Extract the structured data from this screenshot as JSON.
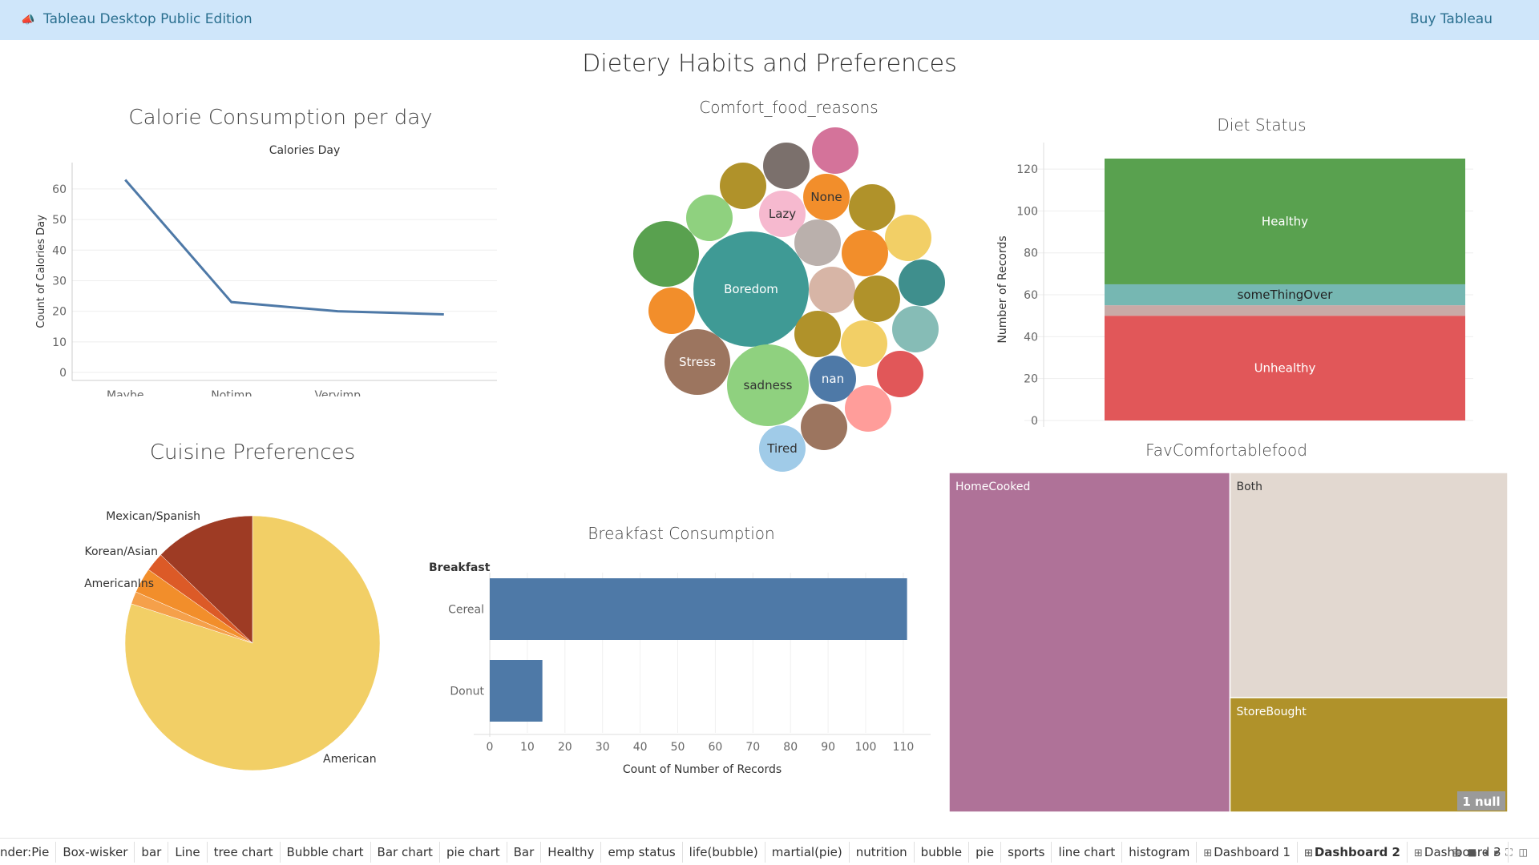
{
  "topbar": {
    "logo_icon": "megaphone-icon",
    "app_title": "Tableau Desktop Public Edition",
    "buy_link": "Buy Tableau"
  },
  "dashboard": {
    "title": "Dietery Habits and Preferences"
  },
  "line_chart": {
    "title": "Calorie Consumption per day",
    "header": "Calories Day",
    "chart_data": {
      "type": "line",
      "categories": [
        "Maybe",
        "Notimp",
        "Veryimp",
        "."
      ],
      "values": [
        63,
        23,
        20,
        19
      ],
      "ylabel": "Count of Calories Day",
      "yticks": [
        0,
        10,
        20,
        30,
        40,
        50,
        60
      ],
      "ylim": [
        0,
        66
      ],
      "color": "#4e79a7"
    }
  },
  "bubble_chart": {
    "title": "Comfort_food_reasons",
    "labels": {
      "boredom": "Boredom",
      "stress": "Stress",
      "sadness": "sadness",
      "lazy": "Lazy",
      "none": "None",
      "nan": "nan",
      "tired": "Tired"
    }
  },
  "stacked_bar": {
    "title": "Diet Status",
    "chart_data": {
      "type": "bar",
      "ylabel": "Number of Records",
      "yticks": [
        0,
        20,
        40,
        60,
        80,
        100,
        120
      ],
      "ylim": [
        0,
        125
      ],
      "segments": [
        {
          "name": "Unhealthy",
          "value": 50,
          "color": "#e15759"
        },
        {
          "name": "",
          "value": 5,
          "color": "#c9a9a6"
        },
        {
          "name": "someThingOver",
          "value": 10,
          "color": "#76b7b2"
        },
        {
          "name": "Healthy",
          "value": 60,
          "color": "#59a14f"
        }
      ]
    }
  },
  "pie_chart": {
    "title": "Cuisine Preferences",
    "chart_data": {
      "type": "pie",
      "slices": [
        {
          "label": "American",
          "value": 100,
          "color": "#f2cf66"
        },
        {
          "label": "AmericanIns",
          "value": 2,
          "color": "#f5a04a"
        },
        {
          "label": "",
          "value": 4,
          "color": "#f28e2b"
        },
        {
          "label": "Korean/Asian",
          "value": 3,
          "color": "#dc5a27"
        },
        {
          "label": "Mexican/Spanish",
          "value": 16,
          "color": "#9e3b24"
        }
      ]
    }
  },
  "hbar_chart": {
    "title": "Breakfast Consumption",
    "header": "Breakfast",
    "chart_data": {
      "type": "bar",
      "categories": [
        "Cereal",
        "Donut"
      ],
      "values": [
        111,
        14
      ],
      "xlabel": "Count of Number of Records",
      "xticks": [
        0,
        10,
        20,
        30,
        40,
        50,
        60,
        70,
        80,
        90,
        100,
        110
      ],
      "xlim": [
        0,
        113
      ],
      "color": "#4e79a7"
    }
  },
  "treemap": {
    "title": "FavComfortablefood",
    "chart_data": {
      "type": "treemap",
      "items": [
        {
          "label": "HomeCooked",
          "value": 87,
          "color": "#af7298"
        },
        {
          "label": "Both",
          "value": 57,
          "color": "#e2d8d0"
        },
        {
          "label": "StoreBought",
          "value": 29,
          "color": "#b0922a"
        }
      ]
    },
    "null_badge": "1 null"
  },
  "tabs": [
    "nder:Pie",
    "Box-wisker",
    "bar",
    "Line",
    "tree chart",
    "Bubble chart",
    "Bar chart",
    "pie chart",
    "Bar",
    "Healthy",
    "emp status",
    "life(bubble)",
    "martial(pie)",
    "nutrition",
    "bubble",
    "pie",
    "sports",
    "line chart",
    "histogram"
  ],
  "dash_tabs": [
    {
      "label": "Dashboard 1",
      "active": false
    },
    {
      "label": "Dashboard 2",
      "active": true
    },
    {
      "label": "Dashboard 3",
      "active": false
    }
  ],
  "tab_controls": [
    "grid-view-icon",
    "filmstrip-icon",
    "prev-icon",
    "next-icon",
    "fullscreen-icon",
    "presentation-icon"
  ]
}
